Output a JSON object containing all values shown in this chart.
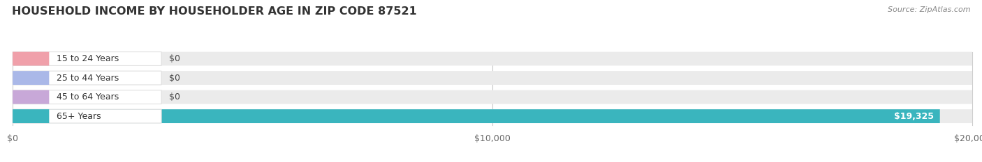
{
  "title": "HOUSEHOLD INCOME BY HOUSEHOLDER AGE IN ZIP CODE 87521",
  "source": "Source: ZipAtlas.com",
  "categories": [
    "15 to 24 Years",
    "25 to 44 Years",
    "45 to 64 Years",
    "65+ Years"
  ],
  "values": [
    0,
    0,
    0,
    19325
  ],
  "bar_colors": [
    "#f0a0aa",
    "#aab8e8",
    "#c8a8d8",
    "#3ab5be"
  ],
  "bar_bg_color": "#ebebeb",
  "background_color": "#ffffff",
  "xmax": 20000,
  "x_ticks": [
    0,
    10000,
    20000
  ],
  "x_tick_labels": [
    "$0",
    "$10,000",
    "$20,000"
  ],
  "value_labels": [
    "$0",
    "$0",
    "$0",
    "$19,325"
  ],
  "figsize": [
    14.06,
    2.33
  ],
  "dpi": 100
}
